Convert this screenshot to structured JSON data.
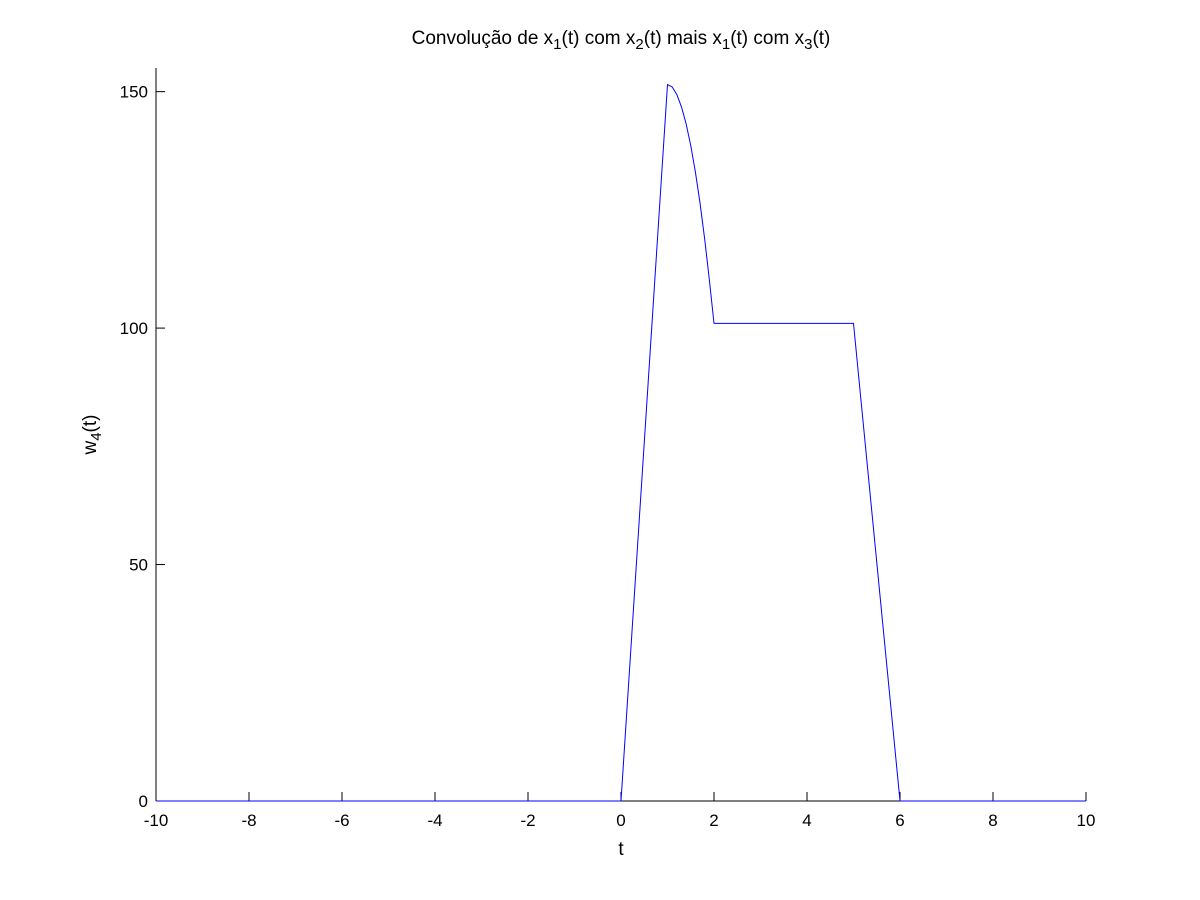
{
  "chart_data": {
    "type": "line",
    "title": {
      "parts": [
        {
          "text": "Convolução de x"
        },
        {
          "text": "1",
          "sub": true
        },
        {
          "text": "(t) com x"
        },
        {
          "text": "2",
          "sub": true
        },
        {
          "text": "(t) mais x"
        },
        {
          "text": "1",
          "sub": true
        },
        {
          "text": "(t) com x"
        },
        {
          "text": "3",
          "sub": true
        },
        {
          "text": "(t)"
        }
      ]
    },
    "xlabel": "t",
    "ylabel": {
      "parts": [
        {
          "text": "w"
        },
        {
          "text": "4",
          "sub": true
        },
        {
          "text": "(t)"
        }
      ]
    },
    "xlim": [
      -10,
      10
    ],
    "ylim": [
      0,
      155
    ],
    "xticks": [
      -10,
      -8,
      -6,
      -4,
      -2,
      0,
      2,
      4,
      6,
      8,
      10
    ],
    "xtick_labels": [
      "-10",
      "-8",
      "-6",
      "-4",
      "-2",
      "0",
      "2",
      "4",
      "6",
      "8",
      "10"
    ],
    "yticks": [
      0,
      50,
      100,
      150
    ],
    "ytick_labels": [
      "0",
      "50",
      "100",
      "150"
    ],
    "grid": false,
    "box": false,
    "series": [
      {
        "color": "#0000ff",
        "x": [
          -10,
          0,
          1,
          1.1,
          1.2,
          1.3,
          1.4,
          1.5,
          1.6,
          1.7,
          1.8,
          1.9,
          2,
          5,
          6,
          10
        ],
        "y": [
          0,
          0,
          151.5,
          151,
          149.4,
          146.8,
          143.2,
          138.6,
          133,
          126.4,
          118.8,
          110.2,
          101,
          101,
          0,
          0
        ]
      }
    ]
  }
}
